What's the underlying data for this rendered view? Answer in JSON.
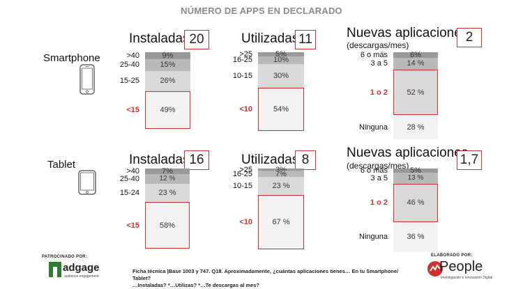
{
  "title": "NÚMERO DE APPS EN DECLARADO",
  "rows": [
    {
      "device": "Smartphone",
      "groups": [
        {
          "heading": "Instaladas",
          "sub": "",
          "value": "20",
          "segments": [
            {
              "label": ">40",
              "value": 9,
              "text": "9%",
              "color": "#999999",
              "highlight": false,
              "red": false
            },
            {
              "label": "25-40",
              "value": 15,
              "text": "15%",
              "color": "#b9b9b9",
              "highlight": false,
              "red": false
            },
            {
              "label": "15-25",
              "value": 26,
              "text": "26%",
              "color": "#d9d9d9",
              "highlight": false,
              "red": false
            },
            {
              "label": "<15",
              "value": 49,
              "text": "49%",
              "color": "#f2f2f2",
              "highlight": true,
              "red": true
            }
          ]
        },
        {
          "heading": "Utilizadas",
          "sub": "",
          "value": "11",
          "segments": [
            {
              "label": ">25",
              "value": 5,
              "text": "5%",
              "color": "#999999",
              "highlight": false,
              "red": false
            },
            {
              "label": "16-25",
              "value": 10,
              "text": "10%",
              "color": "#b9b9b9",
              "highlight": false,
              "red": false
            },
            {
              "label": "10-15",
              "value": 30,
              "text": "30%",
              "color": "#d9d9d9",
              "highlight": false,
              "red": false
            },
            {
              "label": "<10",
              "value": 54,
              "text": "54%",
              "color": "#f2f2f2",
              "highlight": true,
              "red": true
            }
          ]
        },
        {
          "heading": "Nuevas aplicaciones",
          "sub": "(descargas/mes)",
          "value": "2",
          "segments": [
            {
              "label": "6 o más",
              "value": 6,
              "text": "6%",
              "color": "#999999",
              "highlight": false,
              "red": false
            },
            {
              "label": "3 a 5",
              "value": 14,
              "text": "14 %",
              "color": "#b9b9b9",
              "highlight": false,
              "red": false
            },
            {
              "label": "1 o 2",
              "value": 52,
              "text": "52 %",
              "color": "#d9d9d9",
              "highlight": true,
              "red": true
            },
            {
              "label": "Ninguna",
              "value": 28,
              "text": "28 %",
              "color": "#f2f2f2",
              "highlight": false,
              "red": false
            }
          ]
        }
      ]
    },
    {
      "device": "Tablet",
      "groups": [
        {
          "heading": "Instaladas",
          "sub": "",
          "value": "16",
          "segments": [
            {
              "label": ">40",
              "value": 7,
              "text": "7%",
              "color": "#999999",
              "highlight": false,
              "red": false
            },
            {
              "label": "25-40",
              "value": 12,
              "text": "12 %",
              "color": "#b9b9b9",
              "highlight": false,
              "red": false
            },
            {
              "label": "15-24",
              "value": 23,
              "text": "23 %",
              "color": "#d9d9d9",
              "highlight": false,
              "red": false
            },
            {
              "label": "<15",
              "value": 58,
              "text": "58%",
              "color": "#f2f2f2",
              "highlight": true,
              "red": true
            }
          ]
        },
        {
          "heading": "Utilizadas",
          "sub": "",
          "value": "8",
          "segments": [
            {
              "label": ">25",
              "value": 3,
              "text": "3%",
              "color": "#999999",
              "highlight": false,
              "red": false
            },
            {
              "label": "16-25",
              "value": 7,
              "text": "7%",
              "color": "#b9b9b9",
              "highlight": false,
              "red": false
            },
            {
              "label": "10-15",
              "value": 23,
              "text": "23 %",
              "color": "#d9d9d9",
              "highlight": false,
              "red": false
            },
            {
              "label": "<10",
              "value": 67,
              "text": "67 %",
              "color": "#f2f2f2",
              "highlight": true,
              "red": true
            }
          ]
        },
        {
          "heading": "Nuevas aplicaciones",
          "sub": "(descargas/mes)",
          "value": "1,7",
          "segments": [
            {
              "label": "6 o más",
              "value": 5,
              "text": "5%",
              "color": "#999999",
              "highlight": false,
              "red": false
            },
            {
              "label": "3 a 5",
              "value": 13,
              "text": "13 %",
              "color": "#b9b9b9",
              "highlight": false,
              "red": false
            },
            {
              "label": "1 o 2",
              "value": 46,
              "text": "46 %",
              "color": "#d9d9d9",
              "highlight": true,
              "red": true
            },
            {
              "label": "Ninguna",
              "value": 36,
              "text": "36 %",
              "color": "#f2f2f2",
              "highlight": false,
              "red": false
            }
          ]
        }
      ]
    }
  ],
  "chart_data": [
    {
      "type": "bar",
      "title": "Instaladas",
      "device": "Smartphone",
      "categories": [
        ">40",
        "25-40",
        "15-25",
        "<15"
      ],
      "values": [
        9,
        15,
        26,
        49
      ],
      "unit": "%",
      "summary_value": 20
    },
    {
      "type": "bar",
      "title": "Utilizadas",
      "device": "Smartphone",
      "categories": [
        ">25",
        "16-25",
        "10-15",
        "<10"
      ],
      "values": [
        5,
        10,
        30,
        54
      ],
      "unit": "%",
      "summary_value": 11
    },
    {
      "type": "bar",
      "title": "Nuevas aplicaciones (descargas/mes)",
      "device": "Smartphone",
      "categories": [
        "6 o más",
        "3 a 5",
        "1 o 2",
        "Ninguna"
      ],
      "values": [
        6,
        14,
        52,
        28
      ],
      "unit": "%",
      "summary_value": 2
    },
    {
      "type": "bar",
      "title": "Instaladas",
      "device": "Tablet",
      "categories": [
        ">40",
        "25-40",
        "15-24",
        "<15"
      ],
      "values": [
        7,
        12,
        23,
        58
      ],
      "unit": "%",
      "summary_value": 16
    },
    {
      "type": "bar",
      "title": "Utilizadas",
      "device": "Tablet",
      "categories": [
        ">25",
        "16-25",
        "10-15",
        "<10"
      ],
      "values": [
        3,
        7,
        23,
        67
      ],
      "unit": "%",
      "summary_value": 8
    },
    {
      "type": "bar",
      "title": "Nuevas aplicaciones (descargas/mes)",
      "device": "Tablet",
      "categories": [
        "6 o más",
        "3 a 5",
        "1 o 2",
        "Ninguna"
      ],
      "values": [
        5,
        13,
        46,
        36
      ],
      "unit": "%",
      "summary_value": 1.7
    }
  ],
  "footer": {
    "sponsor_label": "PATROCINADO POR:",
    "sponsor_name": "adgage",
    "sponsor_tagline": "audience engagement",
    "note_line1": "Ficha técnica |Base 1003 y 747. Q18. Aproximadamente, ¿cuántas aplicaciones tienes… En tu Smartphone/  Tablet?",
    "note_line2": "…Instaladas? *…Utilizas? *…Te descargas al mes?",
    "author_label": "ELABORADO POR:",
    "author_name": "People",
    "author_tagline": "Investigación e Innovación Digital"
  },
  "colors": {
    "accent": "#d32f2f",
    "title": "#8a8a8a"
  }
}
